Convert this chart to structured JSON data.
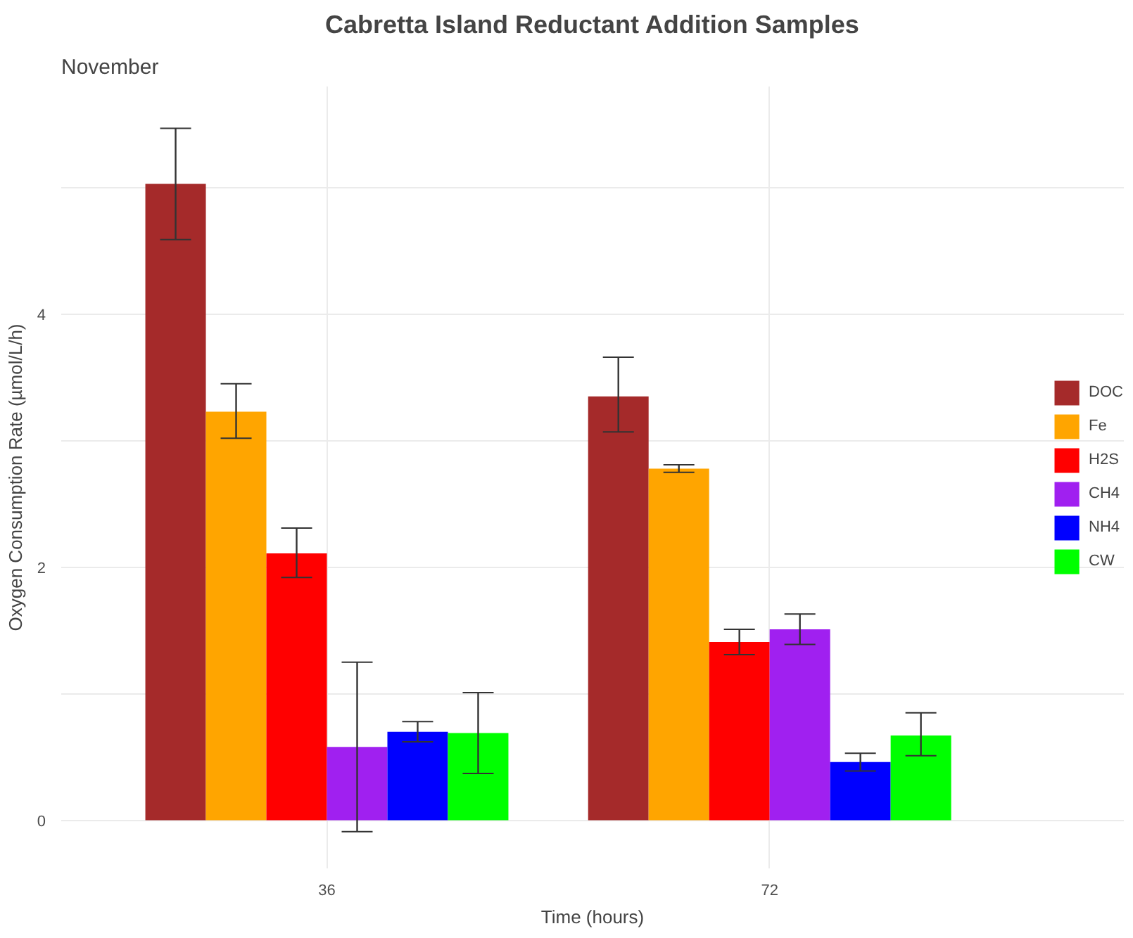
{
  "chart_data": {
    "type": "bar",
    "title": "Cabretta Island Reductant Addition Samples",
    "subtitle": "November",
    "xlabel": "Time (hours)",
    "ylabel": "Oxygen Consumption Rate (µmol/L/h)",
    "categories": [
      "36",
      "72"
    ],
    "series": [
      {
        "name": "DOC",
        "color": "#a52a2a",
        "values": [
          5.03,
          3.35
        ],
        "errors": [
          [
            4.59,
            5.47
          ],
          [
            3.07,
            3.66
          ]
        ]
      },
      {
        "name": "Fe",
        "color": "#ffa500",
        "values": [
          3.23,
          2.78
        ],
        "errors": [
          [
            3.02,
            3.45
          ],
          [
            2.75,
            2.81
          ]
        ]
      },
      {
        "name": "H2S",
        "color": "#ff0000",
        "values": [
          2.11,
          1.41
        ],
        "errors": [
          [
            1.92,
            2.31
          ],
          [
            1.31,
            1.51
          ]
        ]
      },
      {
        "name": "CH4",
        "color": "#a020f0",
        "values": [
          0.58,
          1.51
        ],
        "errors": [
          [
            -0.09,
            1.25
          ],
          [
            1.39,
            1.63
          ]
        ]
      },
      {
        "name": "NH4",
        "color": "#0000ff",
        "values": [
          0.7,
          0.46
        ],
        "errors": [
          [
            0.62,
            0.78
          ],
          [
            0.39,
            0.53
          ]
        ]
      },
      {
        "name": "CW",
        "color": "#00ff00",
        "values": [
          0.69,
          0.67
        ],
        "errors": [
          [
            0.37,
            1.01
          ],
          [
            0.51,
            0.85
          ]
        ]
      }
    ],
    "ylim": [
      -0.38,
      5.8
    ],
    "yticks": [
      0,
      {
        "value": 1,
        "label": null
      },
      2,
      {
        "value": 3,
        "label": null
      },
      4,
      {
        "value": 5,
        "label": null
      }
    ],
    "grid": true,
    "legend": "right"
  }
}
